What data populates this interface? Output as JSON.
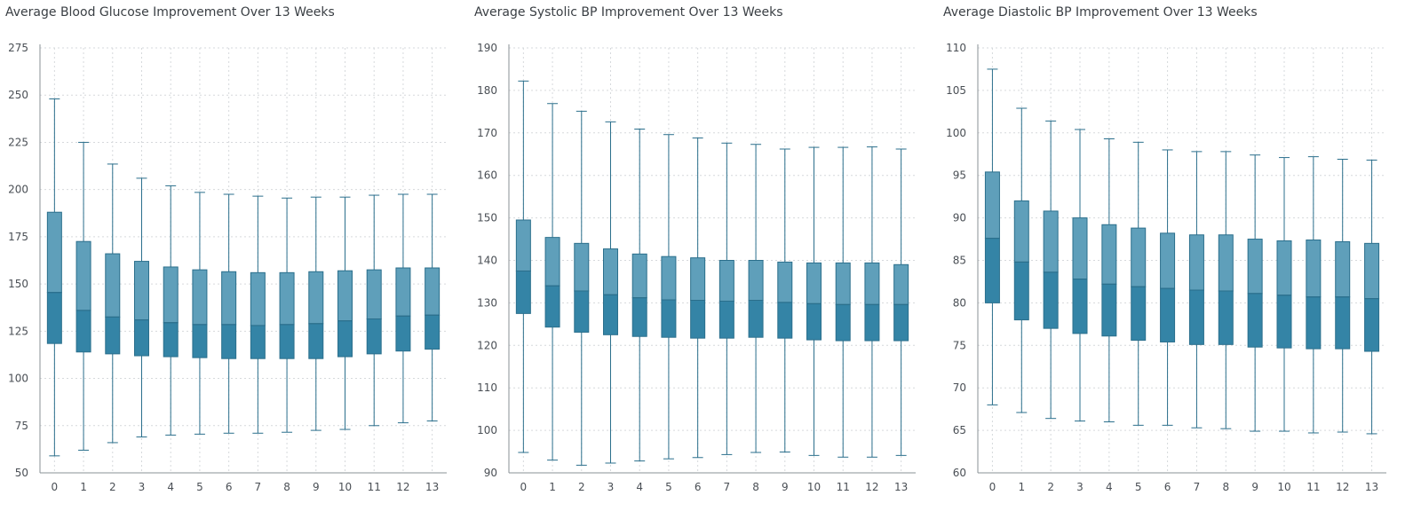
{
  "chart_data": [
    {
      "type": "box",
      "title": "Average Blood Glucose Improvement Over 13 Weeks",
      "ylim": [
        50,
        275
      ],
      "yticks": [
        50,
        75,
        100,
        125,
        150,
        175,
        200,
        225,
        250,
        275
      ],
      "grid": true,
      "categories": [
        "0",
        "1",
        "2",
        "3",
        "4",
        "5",
        "6",
        "7",
        "8",
        "9",
        "10",
        "11",
        "12",
        "13"
      ],
      "boxes": [
        {
          "min": 59,
          "q1": 118.5,
          "median": 145.5,
          "q3": 188,
          "max": 248
        },
        {
          "min": 62,
          "q1": 114,
          "median": 136,
          "q3": 172.5,
          "max": 225
        },
        {
          "min": 66,
          "q1": 113,
          "median": 132.5,
          "q3": 166,
          "max": 213.5
        },
        {
          "min": 69,
          "q1": 112,
          "median": 131,
          "q3": 162,
          "max": 206
        },
        {
          "min": 70,
          "q1": 111.5,
          "median": 129.5,
          "q3": 159,
          "max": 202
        },
        {
          "min": 70.5,
          "q1": 111,
          "median": 128.5,
          "q3": 157.5,
          "max": 198.5
        },
        {
          "min": 71,
          "q1": 110.5,
          "median": 128.5,
          "q3": 156.5,
          "max": 197.5
        },
        {
          "min": 71,
          "q1": 110.5,
          "median": 128,
          "q3": 156,
          "max": 196.5
        },
        {
          "min": 71.5,
          "q1": 110.5,
          "median": 128.5,
          "q3": 156,
          "max": 195.5
        },
        {
          "min": 72.5,
          "q1": 110.5,
          "median": 129,
          "q3": 156.5,
          "max": 196
        },
        {
          "min": 73,
          "q1": 111.5,
          "median": 130.5,
          "q3": 157,
          "max": 196
        },
        {
          "min": 75,
          "q1": 113,
          "median": 131.5,
          "q3": 157.5,
          "max": 197
        },
        {
          "min": 76.5,
          "q1": 114.5,
          "median": 133,
          "q3": 158.5,
          "max": 197.5
        },
        {
          "min": 77.5,
          "q1": 115.5,
          "median": 133.5,
          "q3": 158.5,
          "max": 197.5
        }
      ]
    },
    {
      "type": "box",
      "title": "Average Systolic BP Improvement Over 13 Weeks",
      "ylim": [
        90,
        190
      ],
      "yticks": [
        90,
        100,
        110,
        120,
        130,
        140,
        150,
        160,
        170,
        180,
        190
      ],
      "grid": true,
      "categories": [
        "0",
        "1",
        "2",
        "3",
        "4",
        "5",
        "6",
        "7",
        "8",
        "9",
        "10",
        "11",
        "12",
        "13"
      ],
      "boxes": [
        {
          "min": 94.8,
          "q1": 127.5,
          "median": 137.5,
          "q3": 149.5,
          "max": 182.2
        },
        {
          "min": 93,
          "q1": 124.3,
          "median": 134,
          "q3": 145.4,
          "max": 176.9
        },
        {
          "min": 91.8,
          "q1": 123.1,
          "median": 132.8,
          "q3": 144,
          "max": 175.1
        },
        {
          "min": 92.3,
          "q1": 122.5,
          "median": 131.9,
          "q3": 142.7,
          "max": 172.6
        },
        {
          "min": 92.8,
          "q1": 122.1,
          "median": 131.2,
          "q3": 141.5,
          "max": 170.9
        },
        {
          "min": 93.3,
          "q1": 121.9,
          "median": 130.7,
          "q3": 140.9,
          "max": 169.6
        },
        {
          "min": 93.6,
          "q1": 121.7,
          "median": 130.6,
          "q3": 140.6,
          "max": 168.8
        },
        {
          "min": 94.3,
          "q1": 121.7,
          "median": 130.4,
          "q3": 140,
          "max": 167.6
        },
        {
          "min": 94.8,
          "q1": 121.9,
          "median": 130.6,
          "q3": 140,
          "max": 167.3
        },
        {
          "min": 94.9,
          "q1": 121.7,
          "median": 130.1,
          "q3": 139.6,
          "max": 166.2
        },
        {
          "min": 94.1,
          "q1": 121.3,
          "median": 129.8,
          "q3": 139.4,
          "max": 166.6
        },
        {
          "min": 93.7,
          "q1": 121.1,
          "median": 129.6,
          "q3": 139.4,
          "max": 166.6
        },
        {
          "min": 93.7,
          "q1": 121.1,
          "median": 129.6,
          "q3": 139.4,
          "max": 166.7
        },
        {
          "min": 94.1,
          "q1": 121.1,
          "median": 129.6,
          "q3": 139,
          "max": 166.2
        }
      ]
    },
    {
      "type": "box",
      "title": "Average Diastolic BP Improvement Over 13 Weeks",
      "ylim": [
        60,
        110
      ],
      "yticks": [
        60,
        65,
        70,
        75,
        80,
        85,
        90,
        95,
        100,
        105,
        110
      ],
      "grid": true,
      "categories": [
        "0",
        "1",
        "2",
        "3",
        "4",
        "5",
        "6",
        "7",
        "8",
        "9",
        "10",
        "11",
        "12",
        "13"
      ],
      "boxes": [
        {
          "min": 68,
          "q1": 80,
          "median": 87.6,
          "q3": 95.4,
          "max": 107.5
        },
        {
          "min": 67.1,
          "q1": 78,
          "median": 84.8,
          "q3": 92,
          "max": 102.9
        },
        {
          "min": 66.4,
          "q1": 77,
          "median": 83.6,
          "q3": 90.8,
          "max": 101.4
        },
        {
          "min": 66.1,
          "q1": 76.4,
          "median": 82.8,
          "q3": 90,
          "max": 100.4
        },
        {
          "min": 66,
          "q1": 76.1,
          "median": 82.2,
          "q3": 89.2,
          "max": 99.3
        },
        {
          "min": 65.6,
          "q1": 75.6,
          "median": 81.9,
          "q3": 88.8,
          "max": 98.9
        },
        {
          "min": 65.6,
          "q1": 75.4,
          "median": 81.7,
          "q3": 88.2,
          "max": 98
        },
        {
          "min": 65.3,
          "q1": 75.1,
          "median": 81.5,
          "q3": 88,
          "max": 97.8
        },
        {
          "min": 65.2,
          "q1": 75.1,
          "median": 81.4,
          "q3": 88,
          "max": 97.8
        },
        {
          "min": 64.9,
          "q1": 74.8,
          "median": 81.1,
          "q3": 87.5,
          "max": 97.4
        },
        {
          "min": 64.9,
          "q1": 74.7,
          "median": 80.9,
          "q3": 87.3,
          "max": 97.1
        },
        {
          "min": 64.7,
          "q1": 74.6,
          "median": 80.7,
          "q3": 87.4,
          "max": 97.2
        },
        {
          "min": 64.8,
          "q1": 74.6,
          "median": 80.7,
          "q3": 87.2,
          "max": 96.9
        },
        {
          "min": 64.6,
          "q1": 74.3,
          "median": 80.5,
          "q3": 87,
          "max": 96.8
        }
      ]
    }
  ],
  "colors": {
    "upper_box": "#5f9fba",
    "lower_box": "#3484a6",
    "stroke": "#2b6f8c",
    "grid": "#d6d9dc",
    "axis": "#8a9096"
  }
}
